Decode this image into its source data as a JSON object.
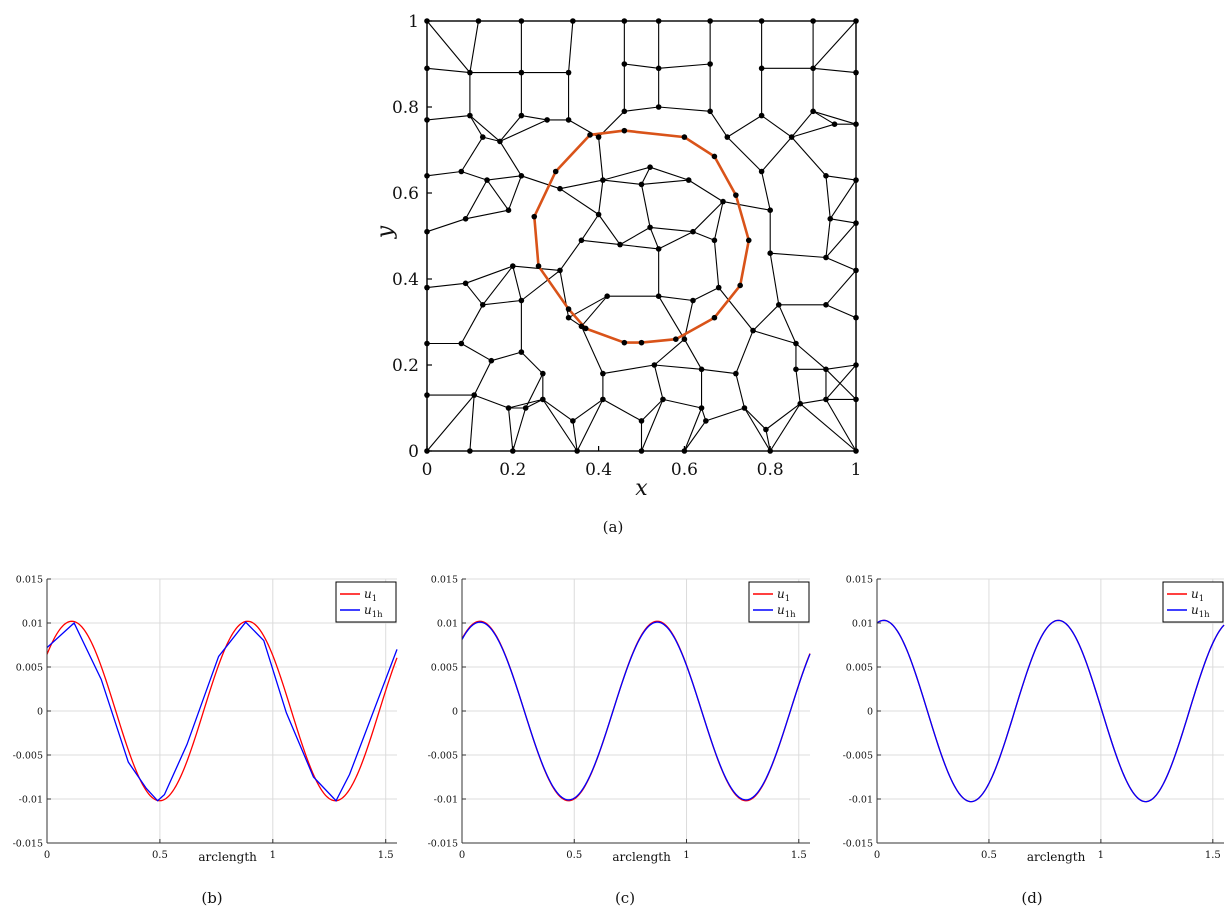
{
  "captions": [
    "(a)",
    "(b)",
    "(c)",
    "(d)"
  ],
  "chart_data": [
    {
      "id": "a",
      "type": "mesh",
      "xlabel": "x",
      "ylabel": "y",
      "xlim": [
        0,
        1
      ],
      "ylim": [
        0,
        1
      ],
      "xticks": [
        0,
        0.2,
        0.4,
        0.6,
        0.8,
        1
      ],
      "xtick_labels": [
        "0",
        "0.2",
        "0.4",
        "0.6",
        "0.8",
        "1"
      ],
      "yticks": [
        0,
        0.2,
        0.4,
        0.6,
        0.8,
        1
      ],
      "ytick_labels": [
        "0",
        "0.2",
        "0.4",
        "0.6",
        "0.8",
        "1"
      ],
      "mesh_color": "#000000",
      "interface_color": "#d95319",
      "interface_polygon": [
        [
          0.46,
          0.745
        ],
        [
          0.6,
          0.73
        ],
        [
          0.67,
          0.685
        ],
        [
          0.72,
          0.595
        ],
        [
          0.75,
          0.49
        ],
        [
          0.73,
          0.385
        ],
        [
          0.67,
          0.31
        ],
        [
          0.58,
          0.26
        ],
        [
          0.5,
          0.252
        ],
        [
          0.46,
          0.252
        ],
        [
          0.37,
          0.285
        ],
        [
          0.33,
          0.33
        ],
        [
          0.26,
          0.43
        ],
        [
          0.25,
          0.545
        ],
        [
          0.3,
          0.65
        ],
        [
          0.38,
          0.735
        ]
      ],
      "mesh_nodes": [
        [
          0,
          0
        ],
        [
          0.1,
          0
        ],
        [
          0.2,
          0
        ],
        [
          0.35,
          0
        ],
        [
          0.5,
          0
        ],
        [
          0.6,
          0
        ],
        [
          0.8,
          0
        ],
        [
          1,
          0
        ],
        [
          0,
          1
        ],
        [
          0.12,
          1
        ],
        [
          0.22,
          1
        ],
        [
          0.34,
          1
        ],
        [
          0.46,
          1
        ],
        [
          0.54,
          1
        ],
        [
          0.66,
          1
        ],
        [
          0.78,
          1
        ],
        [
          0.9,
          1
        ],
        [
          1,
          1
        ],
        [
          0,
          0.89
        ],
        [
          0,
          0.77
        ],
        [
          0,
          0.64
        ],
        [
          0,
          0.51
        ],
        [
          0,
          0.38
        ],
        [
          0,
          0.25
        ],
        [
          0,
          0.13
        ],
        [
          1,
          0.88
        ],
        [
          1,
          0.76
        ],
        [
          1,
          0.63
        ],
        [
          1,
          0.53
        ],
        [
          1,
          0.42
        ],
        [
          1,
          0.31
        ],
        [
          1,
          0.2
        ],
        [
          1,
          0.12
        ],
        [
          0.1,
          0.88
        ],
        [
          0.22,
          0.88
        ],
        [
          0.33,
          0.88
        ],
        [
          0.46,
          0.9
        ],
        [
          0.54,
          0.89
        ],
        [
          0.66,
          0.9
        ],
        [
          0.78,
          0.89
        ],
        [
          0.9,
          0.89
        ],
        [
          0.1,
          0.78
        ],
        [
          0.22,
          0.78
        ],
        [
          0.33,
          0.77
        ],
        [
          0.46,
          0.79
        ],
        [
          0.54,
          0.8
        ],
        [
          0.66,
          0.79
        ],
        [
          0.78,
          0.78
        ],
        [
          0.9,
          0.79
        ],
        [
          0.13,
          0.73
        ],
        [
          0.17,
          0.72
        ],
        [
          0.28,
          0.77
        ],
        [
          0.4,
          0.73
        ],
        [
          0.52,
          0.66
        ],
        [
          0.7,
          0.73
        ],
        [
          0.85,
          0.73
        ],
        [
          0.95,
          0.76
        ],
        [
          0.08,
          0.65
        ],
        [
          0.14,
          0.63
        ],
        [
          0.22,
          0.64
        ],
        [
          0.31,
          0.61
        ],
        [
          0.41,
          0.63
        ],
        [
          0.5,
          0.62
        ],
        [
          0.61,
          0.63
        ],
        [
          0.78,
          0.65
        ],
        [
          0.93,
          0.64
        ],
        [
          0.09,
          0.54
        ],
        [
          0.19,
          0.56
        ],
        [
          0.4,
          0.55
        ],
        [
          0.52,
          0.52
        ],
        [
          0.62,
          0.51
        ],
        [
          0.69,
          0.58
        ],
        [
          0.8,
          0.56
        ],
        [
          0.94,
          0.54
        ],
        [
          0.09,
          0.39
        ],
        [
          0.2,
          0.43
        ],
        [
          0.31,
          0.42
        ],
        [
          0.36,
          0.49
        ],
        [
          0.45,
          0.48
        ],
        [
          0.54,
          0.47
        ],
        [
          0.67,
          0.49
        ],
        [
          0.8,
          0.46
        ],
        [
          0.93,
          0.45
        ],
        [
          0.13,
          0.34
        ],
        [
          0.22,
          0.35
        ],
        [
          0.33,
          0.31
        ],
        [
          0.42,
          0.36
        ],
        [
          0.54,
          0.36
        ],
        [
          0.62,
          0.35
        ],
        [
          0.68,
          0.38
        ],
        [
          0.82,
          0.34
        ],
        [
          0.93,
          0.34
        ],
        [
          0.08,
          0.25
        ],
        [
          0.22,
          0.23
        ],
        [
          0.36,
          0.29
        ],
        [
          0.6,
          0.26
        ],
        [
          0.76,
          0.28
        ],
        [
          0.86,
          0.25
        ],
        [
          0.15,
          0.21
        ],
        [
          0.27,
          0.18
        ],
        [
          0.41,
          0.18
        ],
        [
          0.53,
          0.2
        ],
        [
          0.64,
          0.19
        ],
        [
          0.72,
          0.18
        ],
        [
          0.86,
          0.19
        ],
        [
          0.93,
          0.19
        ],
        [
          0.11,
          0.13
        ],
        [
          0.23,
          0.1
        ],
        [
          0.27,
          0.12
        ],
        [
          0.41,
          0.12
        ],
        [
          0.55,
          0.12
        ],
        [
          0.64,
          0.1
        ],
        [
          0.74,
          0.1
        ],
        [
          0.87,
          0.11
        ],
        [
          0.93,
          0.12
        ],
        [
          0.19,
          0.1
        ],
        [
          0.34,
          0.07
        ],
        [
          0.5,
          0.07
        ],
        [
          0.65,
          0.07
        ],
        [
          0.79,
          0.05
        ]
      ]
    },
    {
      "id": "b",
      "type": "line",
      "xlabel": "arclength",
      "xlim": [
        0,
        1.55
      ],
      "ylim": [
        -0.015,
        0.015
      ],
      "xticks": [
        0,
        0.5,
        1,
        1.5
      ],
      "xtick_labels": [
        "0",
        "0.5",
        "1",
        "1.5"
      ],
      "yticks": [
        -0.015,
        -0.01,
        -0.005,
        0,
        0.005,
        0.01,
        0.015
      ],
      "ytick_labels": [
        "-0.015",
        "-0.01",
        "-0.005",
        "0",
        "0.005",
        "0.01",
        "0.015"
      ],
      "grid": true,
      "legend_position": "top-right",
      "series": [
        {
          "name": "u_1",
          "label_base": "u",
          "label_sub": "1",
          "color": "#ff0000",
          "kind": "function",
          "amp": 0.0102,
          "period": 0.778,
          "phase": 0.0,
          "x0": 0.11
        },
        {
          "name": "u_1h",
          "label_base": "u",
          "label_sub": "1h",
          "color": "#0000ff",
          "kind": "points",
          "x": [
            0,
            0.12,
            0.24,
            0.36,
            0.44,
            0.49,
            0.52,
            0.62,
            0.76,
            0.88,
            0.96,
            1.06,
            1.18,
            1.28,
            1.34,
            1.55
          ],
          "y": [
            0.0072,
            0.01,
            0.0036,
            -0.0058,
            -0.0088,
            -0.0102,
            -0.0095,
            -0.0038,
            0.0062,
            0.0101,
            0.008,
            -0.0002,
            -0.0075,
            -0.0102,
            -0.0072,
            0.007
          ]
        }
      ]
    },
    {
      "id": "c",
      "type": "line",
      "xlabel": "arclength",
      "xlim": [
        0,
        1.55
      ],
      "ylim": [
        -0.015,
        0.015
      ],
      "xticks": [
        0,
        0.5,
        1,
        1.5
      ],
      "xtick_labels": [
        "0",
        "0.5",
        "1",
        "1.5"
      ],
      "yticks": [
        -0.015,
        -0.01,
        -0.005,
        0,
        0.005,
        0.01,
        0.015
      ],
      "ytick_labels": [
        "-0.015",
        "-0.01",
        "-0.005",
        "0",
        "0.005",
        "0.01",
        "0.015"
      ],
      "grid": true,
      "legend_position": "top-right",
      "series": [
        {
          "name": "u_1",
          "label_base": "u",
          "label_sub": "1",
          "color": "#ff0000",
          "kind": "function",
          "amp": 0.0102,
          "period": 0.79,
          "phase": 0.0,
          "x0": 0.08
        },
        {
          "name": "u_1h",
          "label_base": "u",
          "label_sub": "1h",
          "color": "#0000ff",
          "kind": "function",
          "amp": 0.0101,
          "period": 0.79,
          "phase": 0.0,
          "x0": 0.08
        }
      ]
    },
    {
      "id": "d",
      "type": "line",
      "xlabel": "arclength",
      "xlim": [
        0,
        1.55
      ],
      "ylim": [
        -0.015,
        0.015
      ],
      "xticks": [
        0,
        0.5,
        1,
        1.5
      ],
      "xtick_labels": [
        "0",
        "0.5",
        "1",
        "1.5"
      ],
      "yticks": [
        -0.015,
        -0.01,
        -0.005,
        0,
        0.005,
        0.01,
        0.015
      ],
      "ytick_labels": [
        "-0.015",
        "-0.01",
        "-0.005",
        "0",
        "0.005",
        "0.01",
        "0.015"
      ],
      "grid": true,
      "legend_position": "top-right",
      "series": [
        {
          "name": "u_1",
          "label_base": "u",
          "label_sub": "1",
          "color": "#ff0000",
          "kind": "function",
          "amp": 0.0103,
          "period": 0.78,
          "phase": 0.0,
          "x0": 0.03
        },
        {
          "name": "u_1h",
          "label_base": "u",
          "label_sub": "1h",
          "color": "#0000ff",
          "kind": "function",
          "amp": 0.0103,
          "period": 0.78,
          "phase": 0.0,
          "x0": 0.03
        }
      ]
    }
  ]
}
